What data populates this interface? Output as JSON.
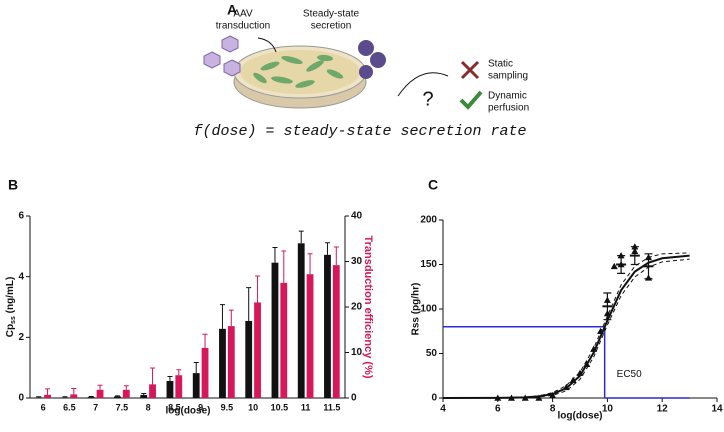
{
  "panel_a": {
    "label": "A",
    "transduction": [
      "AAV",
      "transduction"
    ],
    "secretion": [
      "Steady-state",
      "secretion"
    ],
    "question": "?",
    "static": [
      "Static",
      "sampling"
    ],
    "dynamic": [
      "Dynamic",
      "perfusion"
    ],
    "formula": "f(dose) = steady-state secretion rate"
  },
  "chart_data": [
    {
      "type": "bar",
      "panel": "B",
      "x_label": "log(dose)",
      "y_label": "Cp",
      "y_label_sub": "ss",
      "y_label_unit": " (ng/mL)",
      "y2_label": "Transduction efficiency (%)",
      "categories": [
        "6",
        "6.5",
        "7",
        "7.5",
        "8",
        "8.5",
        "9",
        "9.5",
        "10",
        "10.5",
        "11",
        "11.5"
      ],
      "series": [
        {
          "color": "#111111",
          "values": [
            0.02,
            0.02,
            0.03,
            0.05,
            0.1,
            0.56,
            0.82,
            2.28,
            2.54,
            4.46,
            5.1,
            4.72
          ],
          "errors": [
            0.02,
            0.02,
            0.02,
            0.02,
            0.05,
            0.15,
            0.35,
            0.8,
            1.1,
            0.5,
            0.4,
            0.4
          ]
        },
        {
          "color": "#d6185a",
          "axis": "y2",
          "values": [
            0.7,
            0.8,
            1.8,
            1.8,
            3.0,
            5.0,
            11,
            15.8,
            21,
            25.3,
            27.2,
            29.2
          ],
          "errors": [
            1.3,
            1.3,
            1.0,
            0.9,
            3.6,
            1.2,
            3,
            3.5,
            5.8,
            7,
            4.5,
            4
          ]
        }
      ],
      "ylim": [
        0,
        6
      ],
      "yticks": [
        0,
        2,
        4,
        6
      ],
      "y2lim": [
        0,
        40
      ],
      "y2ticks": [
        0,
        10,
        20,
        30,
        40
      ]
    },
    {
      "type": "scatter",
      "panel": "C",
      "x_label": "log(dose)",
      "y_label": "Rss (pg/hr)",
      "xlim": [
        4,
        14
      ],
      "xticks": [
        4,
        6,
        8,
        10,
        12,
        14
      ],
      "ylim": [
        0,
        200
      ],
      "yticks": [
        0,
        50,
        100,
        150,
        200
      ],
      "points": {
        "color": "#111111",
        "x": [
          6,
          6.5,
          7,
          7.5,
          8,
          8.5,
          8.75,
          9,
          9.25,
          9.5,
          9.75,
          10,
          10,
          10.25,
          10.5,
          10.5,
          11,
          11,
          11.5,
          11.5
        ],
        "values": [
          0,
          0,
          0,
          0,
          3,
          12,
          20,
          28,
          38,
          55,
          75,
          95,
          110,
          148,
          150,
          160,
          170,
          165,
          135,
          158
        ]
      },
      "means": {
        "color": "#111111",
        "x": [
          10,
          10.5,
          11,
          11.5
        ],
        "values": [
          103,
          150,
          160,
          148
        ],
        "errors": [
          15,
          10,
          10,
          14
        ]
      },
      "fit": {
        "x": [
          4,
          6,
          7,
          7.5,
          8,
          8.5,
          9,
          9.5,
          10,
          10.5,
          11,
          11.5,
          12,
          13
        ],
        "values": [
          0,
          0.1,
          0.7,
          1.8,
          4.5,
          11,
          25,
          51,
          87,
          121,
          142,
          152,
          157,
          160
        ],
        "upper": [
          0,
          0.2,
          1,
          2.5,
          6,
          14,
          29,
          56,
          92,
          127,
          148,
          158,
          162,
          163
        ],
        "lower": [
          0,
          0,
          0.4,
          1.2,
          3,
          8,
          21,
          46,
          82,
          115,
          136,
          147,
          153,
          156
        ]
      },
      "ec50": {
        "label": "EC50",
        "x": 9.9,
        "y": 80,
        "x_end": 13,
        "color": "#2a2ad0"
      }
    }
  ]
}
